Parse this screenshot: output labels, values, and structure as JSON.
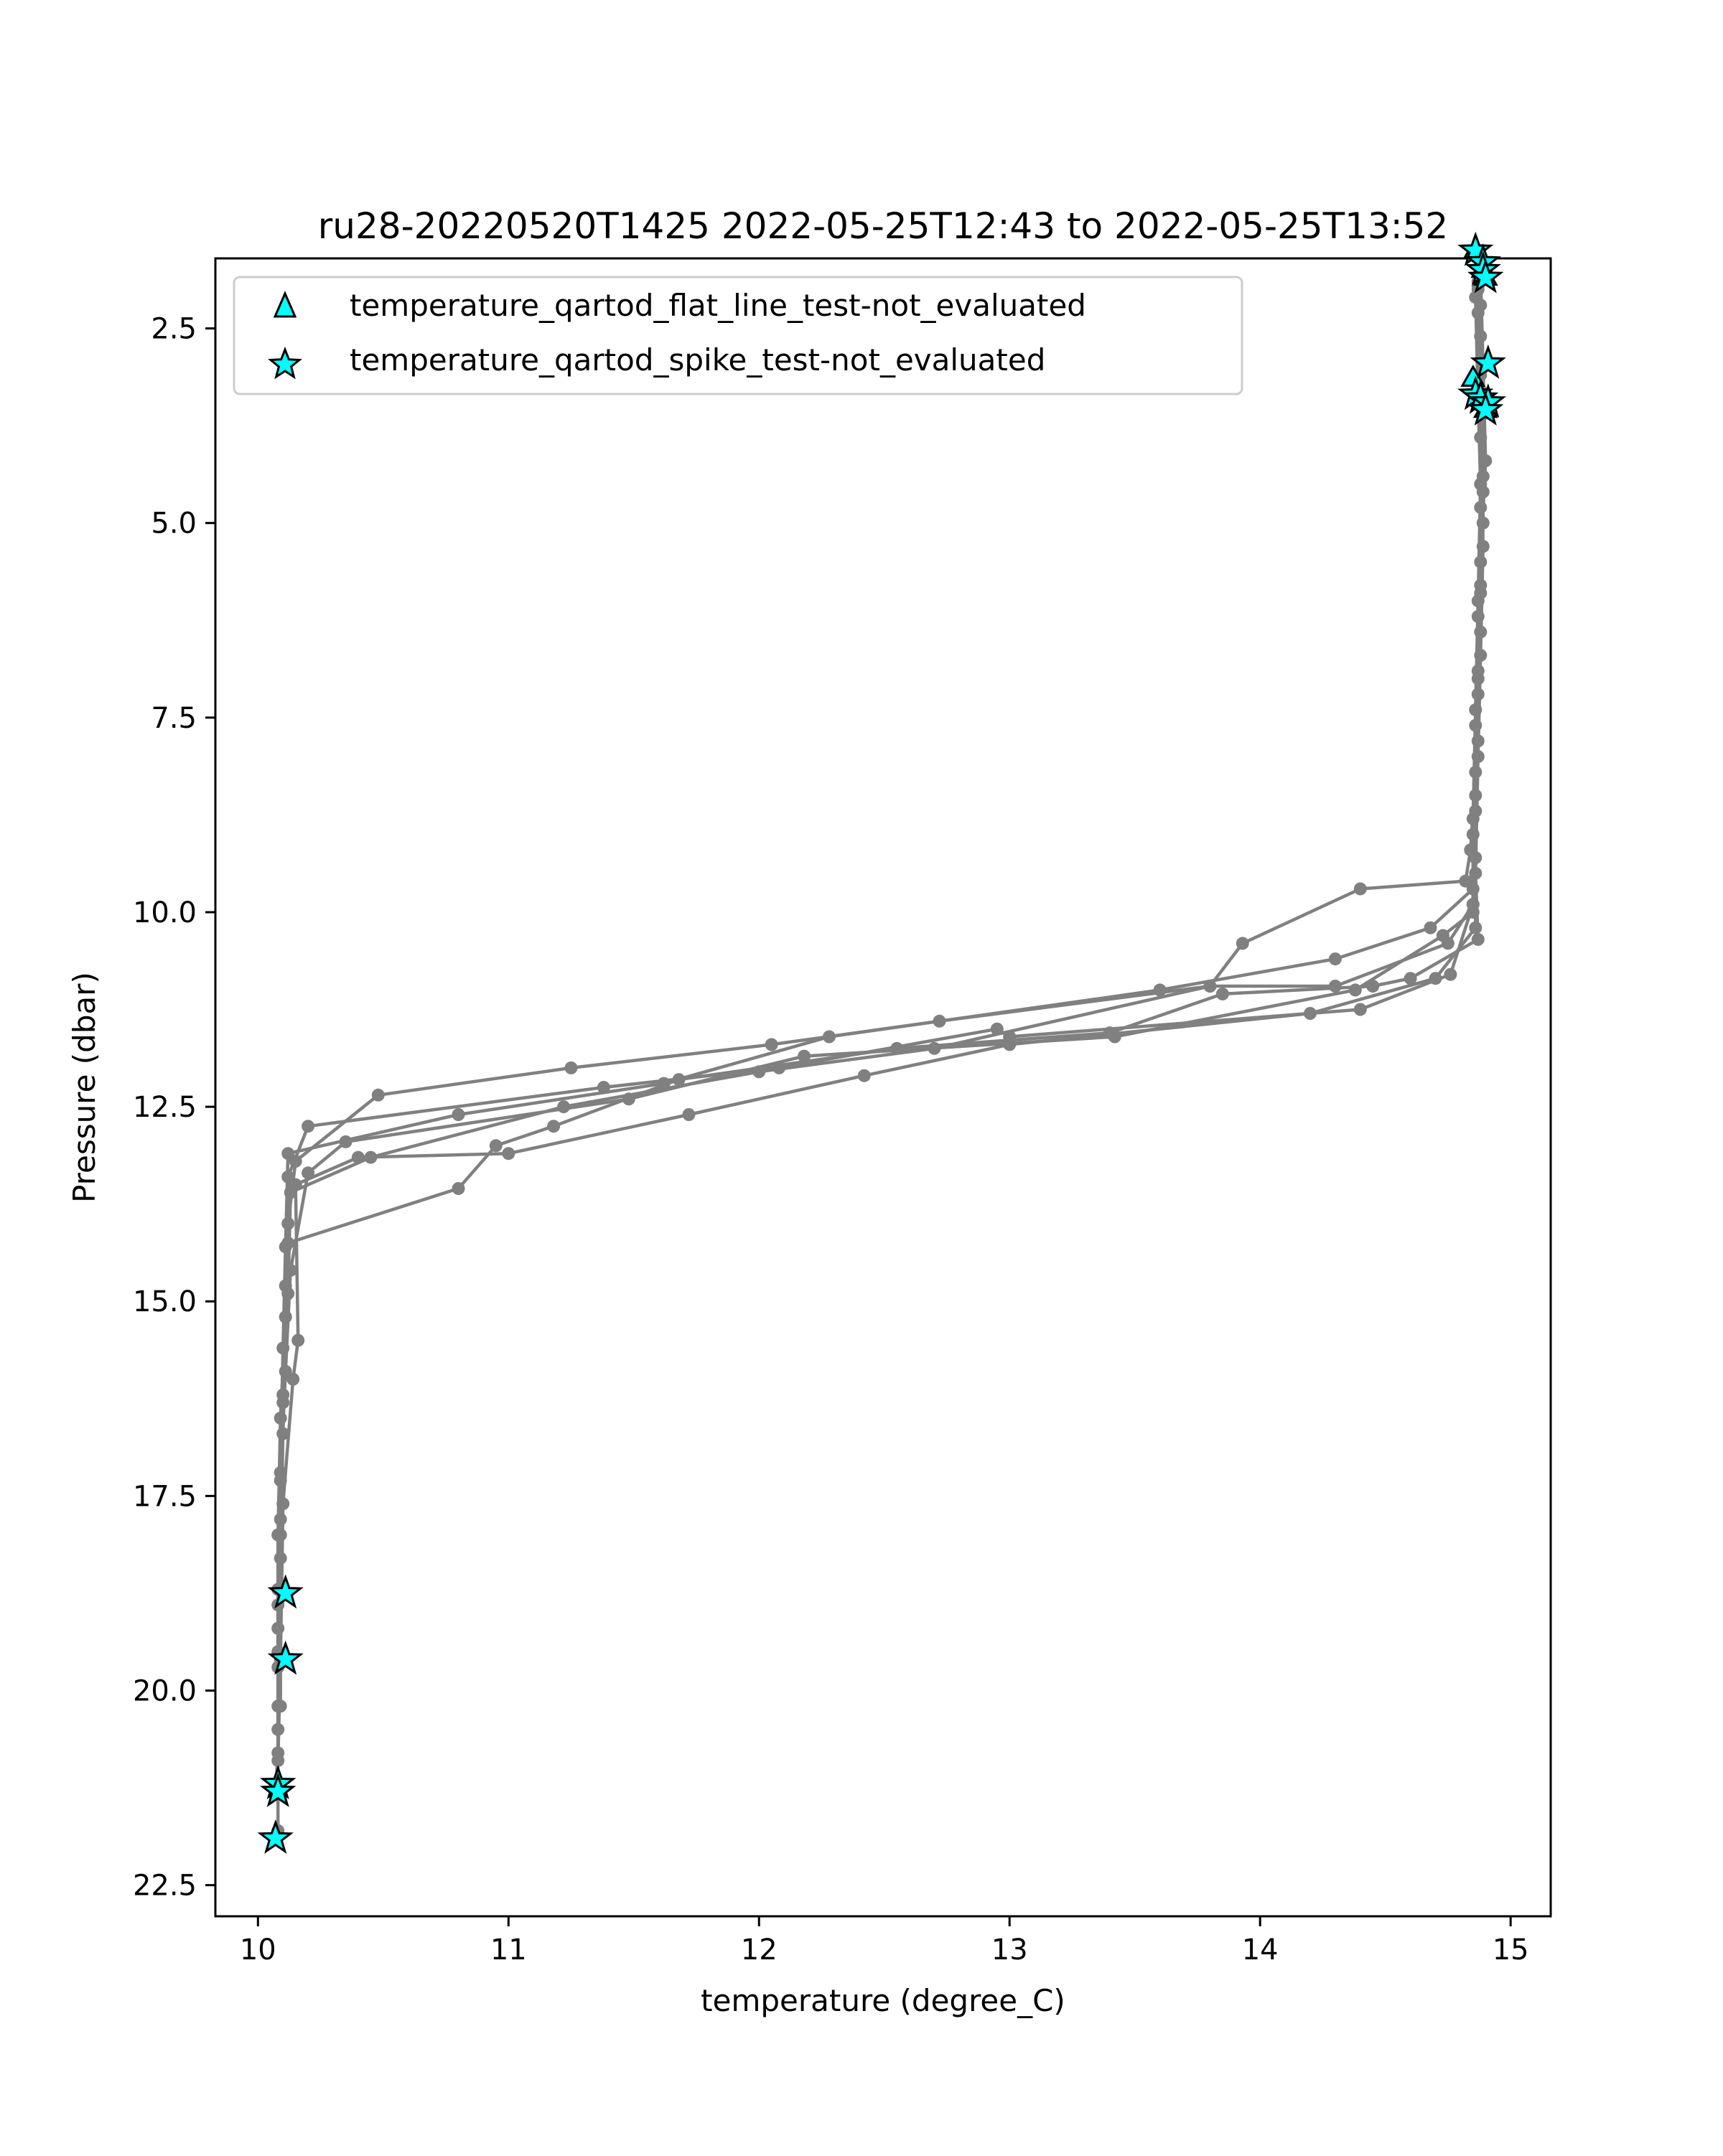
{
  "chart_data": {
    "type": "scatter",
    "title": "ru28-20220520T1425 2022-05-25T12:43 to 2022-05-25T13:52",
    "xlabel": "temperature (degree_C)",
    "ylabel": "Pressure (dbar)",
    "xlim": [
      9.83,
      15.16
    ],
    "ylim": [
      22.9,
      1.6
    ],
    "y_inverted": true,
    "grid": false,
    "legend_position": "upper-left",
    "x_ticks": [
      10,
      11,
      12,
      13,
      14,
      15
    ],
    "y_ticks": [
      2.5,
      5.0,
      7.5,
      10.0,
      12.5,
      15.0,
      17.5,
      20.0,
      22.5
    ],
    "x_tick_labels": [
      "10",
      "11",
      "12",
      "13",
      "14",
      "15"
    ],
    "y_tick_labels": [
      "2.5",
      "5.0",
      "7.5",
      "10.0",
      "12.5",
      "15.0",
      "17.5",
      "20.0",
      "22.5"
    ],
    "profile_series": {
      "color": "#808080",
      "profiles": [
        [
          [
            14.87,
            1.9
          ],
          [
            14.88,
            2.6
          ],
          [
            14.88,
            3.5
          ],
          [
            14.89,
            4.6
          ],
          [
            14.88,
            5.8
          ],
          [
            14.87,
            7.0
          ],
          [
            14.86,
            8.2
          ],
          [
            14.84,
            9.2
          ],
          [
            14.82,
            9.6
          ],
          [
            14.4,
            9.7
          ],
          [
            13.93,
            10.4
          ],
          [
            13.8,
            10.95
          ],
          [
            12.72,
            11.4
          ],
          [
            12.05,
            11.7
          ],
          [
            11.25,
            12.0
          ],
          [
            10.48,
            12.35
          ],
          [
            10.15,
            13.2
          ],
          [
            10.12,
            14.0
          ],
          [
            10.11,
            15.2
          ],
          [
            10.09,
            16.5
          ],
          [
            10.08,
            18.0
          ],
          [
            10.08,
            19.5
          ],
          [
            10.08,
            20.8
          ],
          [
            10.07,
            21.3
          ]
        ],
        [
          [
            14.88,
            1.8
          ],
          [
            14.89,
            3.0
          ],
          [
            14.9,
            4.2
          ],
          [
            14.88,
            5.5
          ],
          [
            14.87,
            6.9
          ],
          [
            14.86,
            8.5
          ],
          [
            14.85,
            9.7
          ],
          [
            14.68,
            10.2
          ],
          [
            14.3,
            10.6
          ],
          [
            13.6,
            11.0
          ],
          [
            12.28,
            11.6
          ],
          [
            11.62,
            12.2
          ],
          [
            10.8,
            12.6
          ],
          [
            10.12,
            13.1
          ],
          [
            10.11,
            14.3
          ],
          [
            10.1,
            15.6
          ],
          [
            10.09,
            17.2
          ],
          [
            10.08,
            18.7
          ],
          [
            10.08,
            20.2
          ],
          [
            10.08,
            21.2
          ],
          [
            10.08,
            21.8
          ]
        ],
        [
          [
            14.87,
            2.0
          ],
          [
            14.88,
            3.3
          ],
          [
            14.88,
            4.8
          ],
          [
            14.87,
            6.2
          ],
          [
            14.86,
            7.6
          ],
          [
            14.85,
            9.0
          ],
          [
            14.85,
            10.0
          ],
          [
            14.73,
            10.3
          ],
          [
            14.38,
            11.0
          ],
          [
            13.42,
            11.6
          ],
          [
            12.18,
            11.85
          ],
          [
            11.48,
            12.4
          ],
          [
            10.35,
            12.95
          ],
          [
            10.2,
            13.35
          ],
          [
            10.13,
            14.6
          ],
          [
            10.11,
            15.9
          ],
          [
            10.09,
            17.3
          ],
          [
            10.08,
            18.9
          ],
          [
            10.08,
            20.5
          ]
        ],
        [
          [
            14.88,
            2.2
          ],
          [
            14.89,
            3.6
          ],
          [
            14.89,
            5.0
          ],
          [
            14.88,
            6.4
          ],
          [
            14.87,
            7.8
          ],
          [
            14.86,
            9.3
          ],
          [
            14.86,
            10.2
          ],
          [
            14.7,
            10.85
          ],
          [
            14.2,
            11.3
          ],
          [
            13.0,
            11.7
          ],
          [
            12.42,
            12.1
          ],
          [
            11.72,
            12.6
          ],
          [
            11.0,
            13.1
          ],
          [
            10.4,
            13.15
          ],
          [
            10.15,
            13.5
          ],
          [
            10.16,
            15.5
          ],
          [
            10.14,
            16.0
          ],
          [
            10.1,
            17.6
          ],
          [
            10.09,
            19.6
          ],
          [
            10.08,
            20.9
          ]
        ],
        [
          [
            14.86,
            2.1
          ],
          [
            14.87,
            3.4
          ],
          [
            14.88,
            4.5
          ],
          [
            14.87,
            6.0
          ],
          [
            14.86,
            7.4
          ],
          [
            14.85,
            8.8
          ],
          [
            14.85,
            9.9
          ],
          [
            14.76,
            10.8
          ],
          [
            14.4,
            11.25
          ],
          [
            13.0,
            11.6
          ],
          [
            12.95,
            11.5
          ],
          [
            12.08,
            12.0
          ],
          [
            11.38,
            12.25
          ],
          [
            10.2,
            12.75
          ],
          [
            10.12,
            13.4
          ],
          [
            10.11,
            14.8
          ],
          [
            10.1,
            16.2
          ],
          [
            10.09,
            17.8
          ],
          [
            10.08,
            19.2
          ]
        ],
        [
          [
            14.87,
            2.3
          ],
          [
            14.88,
            3.9
          ],
          [
            14.89,
            5.3
          ],
          [
            14.88,
            6.7
          ],
          [
            14.87,
            8.0
          ],
          [
            14.86,
            9.5
          ],
          [
            14.87,
            10.35
          ],
          [
            14.6,
            10.85
          ],
          [
            14.45,
            10.95
          ],
          [
            13.85,
            11.05
          ],
          [
            13.4,
            11.55
          ],
          [
            12.55,
            11.75
          ],
          [
            11.68,
            12.15
          ],
          [
            11.18,
            12.75
          ],
          [
            10.95,
            13.0
          ],
          [
            10.8,
            13.55
          ],
          [
            10.12,
            14.25
          ],
          [
            10.11,
            15.2
          ],
          [
            10.1,
            16.7
          ],
          [
            10.09,
            18.3
          ],
          [
            10.09,
            20.2
          ]
        ],
        [
          [
            14.87,
            1.95
          ],
          [
            14.88,
            3.1
          ],
          [
            14.89,
            4.4
          ],
          [
            14.88,
            5.9
          ],
          [
            14.87,
            7.2
          ],
          [
            14.86,
            8.7
          ],
          [
            14.85,
            9.9
          ],
          [
            14.75,
            10.4
          ],
          [
            14.3,
            10.95
          ],
          [
            13.8,
            10.95
          ],
          [
            12.7,
            11.75
          ],
          [
            12.0,
            12.05
          ],
          [
            11.22,
            12.5
          ],
          [
            10.45,
            13.15
          ],
          [
            10.13,
            13.6
          ],
          [
            10.12,
            14.9
          ],
          [
            10.1,
            16.3
          ],
          [
            10.09,
            18.0
          ],
          [
            10.08,
            19.7
          ]
        ]
      ]
    },
    "series": [
      {
        "name": "temperature_qartod_flat_line_test-not_evaluated",
        "marker": "triangle",
        "color": "#00ffff",
        "points": [
          [
            14.86,
            1.5
          ],
          [
            14.89,
            1.75
          ],
          [
            14.9,
            1.85
          ],
          [
            14.85,
            3.15
          ],
          [
            14.9,
            3.55
          ]
        ]
      },
      {
        "name": "temperature_qartod_spike_test-not_evaluated",
        "marker": "star",
        "color": "#00ffff",
        "points": [
          [
            14.86,
            1.5
          ],
          [
            14.89,
            1.65
          ],
          [
            14.89,
            1.75
          ],
          [
            14.9,
            1.85
          ],
          [
            14.91,
            2.95
          ],
          [
            14.86,
            3.35
          ],
          [
            14.88,
            3.4
          ],
          [
            14.91,
            3.45
          ],
          [
            14.9,
            3.55
          ],
          [
            10.11,
            18.75
          ],
          [
            10.11,
            19.6
          ],
          [
            10.08,
            21.2
          ],
          [
            10.08,
            21.3
          ],
          [
            10.07,
            21.9
          ]
        ]
      }
    ]
  }
}
